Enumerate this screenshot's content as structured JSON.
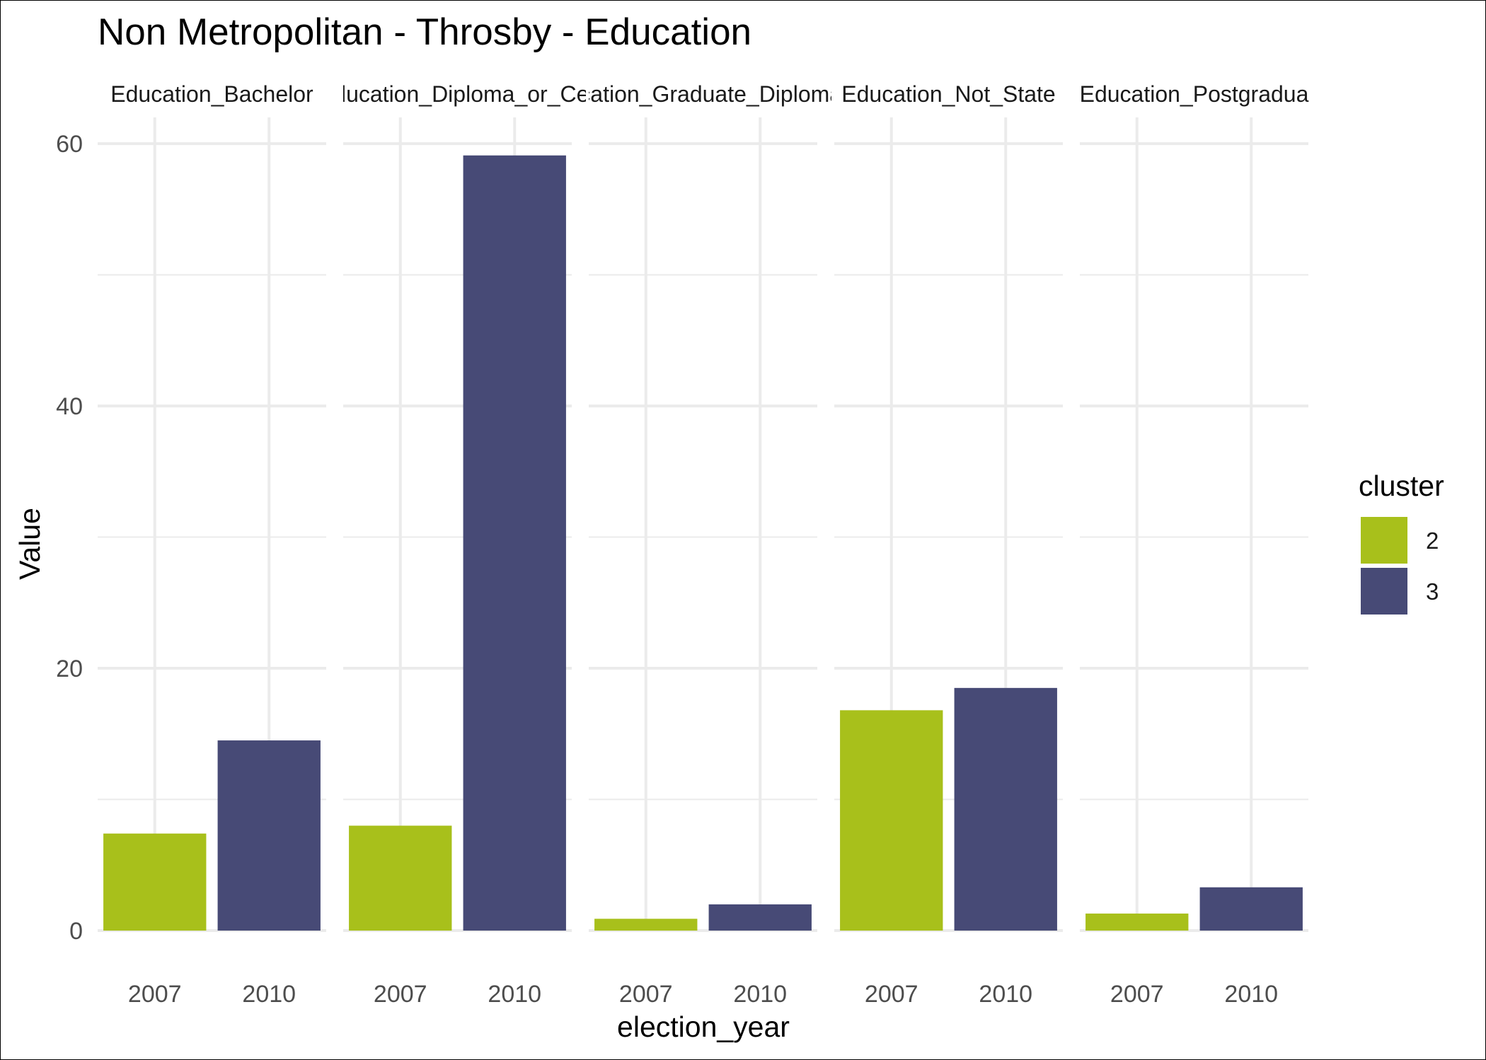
{
  "chart_data": {
    "type": "bar",
    "title": "Non Metropolitan - Throsby - Education",
    "xlabel": "election_year",
    "ylabel": "Value",
    "ylim": [
      0,
      62
    ],
    "yticks": [
      0,
      20,
      40,
      60
    ],
    "x_categories": [
      "2007",
      "2010"
    ],
    "grid": true,
    "legend": {
      "title": "cluster",
      "placement": "right",
      "items": [
        {
          "label": "2",
          "color": "#a8c01b"
        },
        {
          "label": "3",
          "color": "#474a76"
        }
      ]
    },
    "facets": [
      {
        "label": "Education_Bachelor",
        "bars": [
          {
            "x": "2007",
            "cluster": "2",
            "value": 7.4
          },
          {
            "x": "2010",
            "cluster": "3",
            "value": 14.5
          }
        ]
      },
      {
        "label": "Education_Diploma_or_Cer",
        "bars": [
          {
            "x": "2007",
            "cluster": "2",
            "value": 8.0
          },
          {
            "x": "2010",
            "cluster": "3",
            "value": 59.1
          }
        ]
      },
      {
        "label": "Education_Graduate_Diploma_o",
        "bars": [
          {
            "x": "2007",
            "cluster": "2",
            "value": 0.9
          },
          {
            "x": "2010",
            "cluster": "3",
            "value": 2.0
          }
        ]
      },
      {
        "label": "Education_Not_State",
        "bars": [
          {
            "x": "2007",
            "cluster": "2",
            "value": 16.8
          },
          {
            "x": "2010",
            "cluster": "3",
            "value": 18.5
          }
        ]
      },
      {
        "label": "Education_Postgradua",
        "bars": [
          {
            "x": "2007",
            "cluster": "2",
            "value": 1.3
          },
          {
            "x": "2010",
            "cluster": "3",
            "value": 3.3
          }
        ]
      }
    ]
  }
}
